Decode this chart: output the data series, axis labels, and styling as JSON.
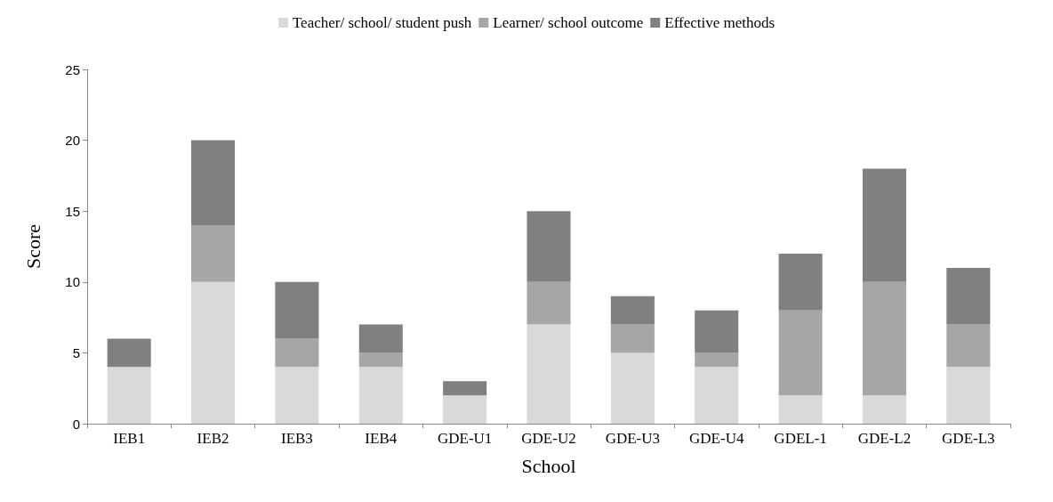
{
  "chart_data": {
    "type": "bar",
    "stacked": true,
    "xlabel": "School",
    "ylabel": "Score",
    "categories": [
      "IEB1",
      "IEB2",
      "IEB3",
      "IEB4",
      "GDE-U1",
      "GDE-U2",
      "GDE-U3",
      "GDE-U4",
      "GDEL-1",
      "GDE-L2",
      "GDE-L3"
    ],
    "series": [
      {
        "name": "Teacher/ school/ student push",
        "color": "#d9d9d9",
        "values": [
          4,
          10,
          4,
          4,
          2,
          7,
          5,
          4,
          2,
          2,
          4
        ]
      },
      {
        "name": "Learner/ school outcome",
        "color": "#a6a6a6",
        "values": [
          0,
          4,
          2,
          1,
          0,
          3,
          2,
          1,
          6,
          8,
          3
        ]
      },
      {
        "name": "Effective methods",
        "color": "#808080",
        "values": [
          2,
          6,
          4,
          2,
          1,
          5,
          2,
          3,
          4,
          8,
          4
        ]
      }
    ],
    "ylim": [
      0,
      25
    ],
    "yticks": [
      0,
      5,
      10,
      15,
      20,
      25
    ],
    "grid": false,
    "legend": "top"
  }
}
